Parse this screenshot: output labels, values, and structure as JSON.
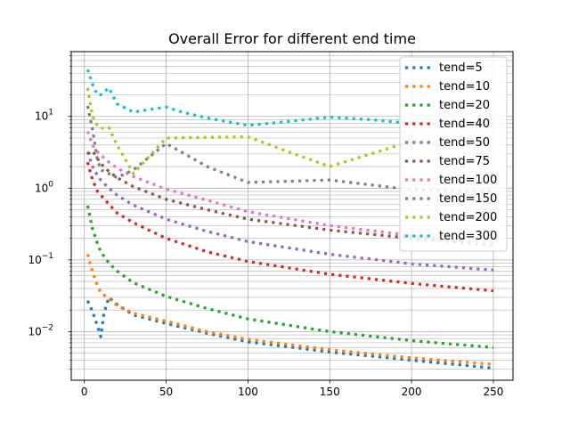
{
  "chart_data": {
    "type": "line",
    "title": "Overall Error for different end time",
    "xlabel": "",
    "ylabel": "",
    "xlim": [
      -8,
      262
    ],
    "ylim": [
      0.0021,
      80
    ],
    "yscale": "log",
    "grid": true,
    "line_style": "dotted",
    "x_ticks": [
      0,
      50,
      100,
      150,
      200,
      250
    ],
    "y_ticks": [
      {
        "value": 0.01,
        "label": "10",
        "exp": "−2"
      },
      {
        "value": 0.1,
        "label": "10",
        "exp": "−1"
      },
      {
        "value": 1,
        "label": "10",
        "exp": "0"
      },
      {
        "value": 10,
        "label": "10",
        "exp": "1"
      }
    ],
    "legend_position": "top-right",
    "series": [
      {
        "name": "tend=5",
        "color": "#1f77b4",
        "x": [
          2,
          5,
          8,
          10,
          12,
          15,
          20,
          30,
          50,
          75,
          100,
          150,
          200,
          250
        ],
        "y": [
          0.027,
          0.019,
          0.012,
          0.0085,
          0.018,
          0.03,
          0.024,
          0.017,
          0.013,
          0.0095,
          0.0072,
          0.0052,
          0.004,
          0.0031
        ]
      },
      {
        "name": "tend=10",
        "color": "#ff7f0e",
        "x": [
          2,
          5,
          8,
          10,
          15,
          20,
          30,
          50,
          75,
          100,
          150,
          200,
          250
        ],
        "y": [
          0.12,
          0.068,
          0.044,
          0.035,
          0.029,
          0.023,
          0.018,
          0.014,
          0.01,
          0.0078,
          0.0056,
          0.0043,
          0.0035
        ]
      },
      {
        "name": "tend=20",
        "color": "#2ca02c",
        "x": [
          2,
          5,
          8,
          10,
          15,
          20,
          30,
          50,
          75,
          100,
          150,
          200,
          250
        ],
        "y": [
          0.57,
          0.27,
          0.17,
          0.13,
          0.09,
          0.07,
          0.048,
          0.031,
          0.021,
          0.015,
          0.01,
          0.0075,
          0.006
        ]
      },
      {
        "name": "tend=40",
        "color": "#d62728",
        "x": [
          2,
          5,
          8,
          10,
          15,
          20,
          30,
          50,
          75,
          100,
          150,
          200,
          250
        ],
        "y": [
          2.3,
          1.3,
          0.9,
          0.8,
          0.6,
          0.45,
          0.33,
          0.2,
          0.13,
          0.095,
          0.063,
          0.047,
          0.037
        ]
      },
      {
        "name": "tend=50",
        "color": "#9467bd",
        "x": [
          2,
          5,
          8,
          10,
          15,
          20,
          30,
          50,
          75,
          100,
          150,
          200,
          250
        ],
        "y": [
          3.2,
          2.0,
          1.5,
          1.3,
          1.0,
          0.8,
          0.58,
          0.37,
          0.25,
          0.18,
          0.12,
          0.088,
          0.072
        ]
      },
      {
        "name": "tend=75",
        "color": "#8c564b",
        "x": [
          2,
          5,
          8,
          10,
          15,
          20,
          30,
          50,
          75,
          100,
          150,
          200,
          250
        ],
        "y": [
          3.0,
          3.3,
          2.6,
          2.2,
          1.7,
          1.4,
          1.05,
          0.7,
          0.5,
          0.37,
          0.26,
          0.2,
          0.16
        ]
      },
      {
        "name": "tend=100",
        "color": "#e377c2",
        "x": [
          2,
          5,
          8,
          10,
          15,
          20,
          30,
          50,
          75,
          100,
          150,
          200,
          250
        ],
        "y": [
          6.2,
          4.0,
          3.2,
          2.9,
          2.3,
          1.9,
          1.45,
          0.97,
          0.68,
          0.47,
          0.3,
          0.22,
          0.17
        ]
      },
      {
        "name": "tend=150",
        "color": "#7f7f7f",
        "x": [
          2,
          5,
          8,
          10,
          15,
          20,
          30,
          50,
          75,
          100,
          150,
          200,
          250
        ],
        "y": [
          14.0,
          6.5,
          2.5,
          1.8,
          1.6,
          1.4,
          1.8,
          4.2,
          2.0,
          1.2,
          1.3,
          0.95,
          0.9
        ]
      },
      {
        "name": "tend=200",
        "color": "#bcbd22",
        "x": [
          2,
          5,
          8,
          10,
          15,
          20,
          30,
          50,
          75,
          100,
          125,
          150,
          175,
          200,
          250
        ],
        "y": [
          25.0,
          10.0,
          7.5,
          6.8,
          7.0,
          4.0,
          1.6,
          5.0,
          5.1,
          5.2,
          3.2,
          2.0,
          3.0,
          4.5,
          4.5
        ]
      },
      {
        "name": "tend=300",
        "color": "#17becf",
        "x": [
          2,
          5,
          8,
          10,
          15,
          20,
          30,
          40,
          50,
          60,
          75,
          100,
          125,
          150,
          175,
          200,
          250
        ],
        "y": [
          45.0,
          28.0,
          20.0,
          20.0,
          25.0,
          15.0,
          11.5,
          12.5,
          13.5,
          11.5,
          9.5,
          7.5,
          8.5,
          9.8,
          9.0,
          8.0,
          8.0
        ]
      }
    ]
  }
}
